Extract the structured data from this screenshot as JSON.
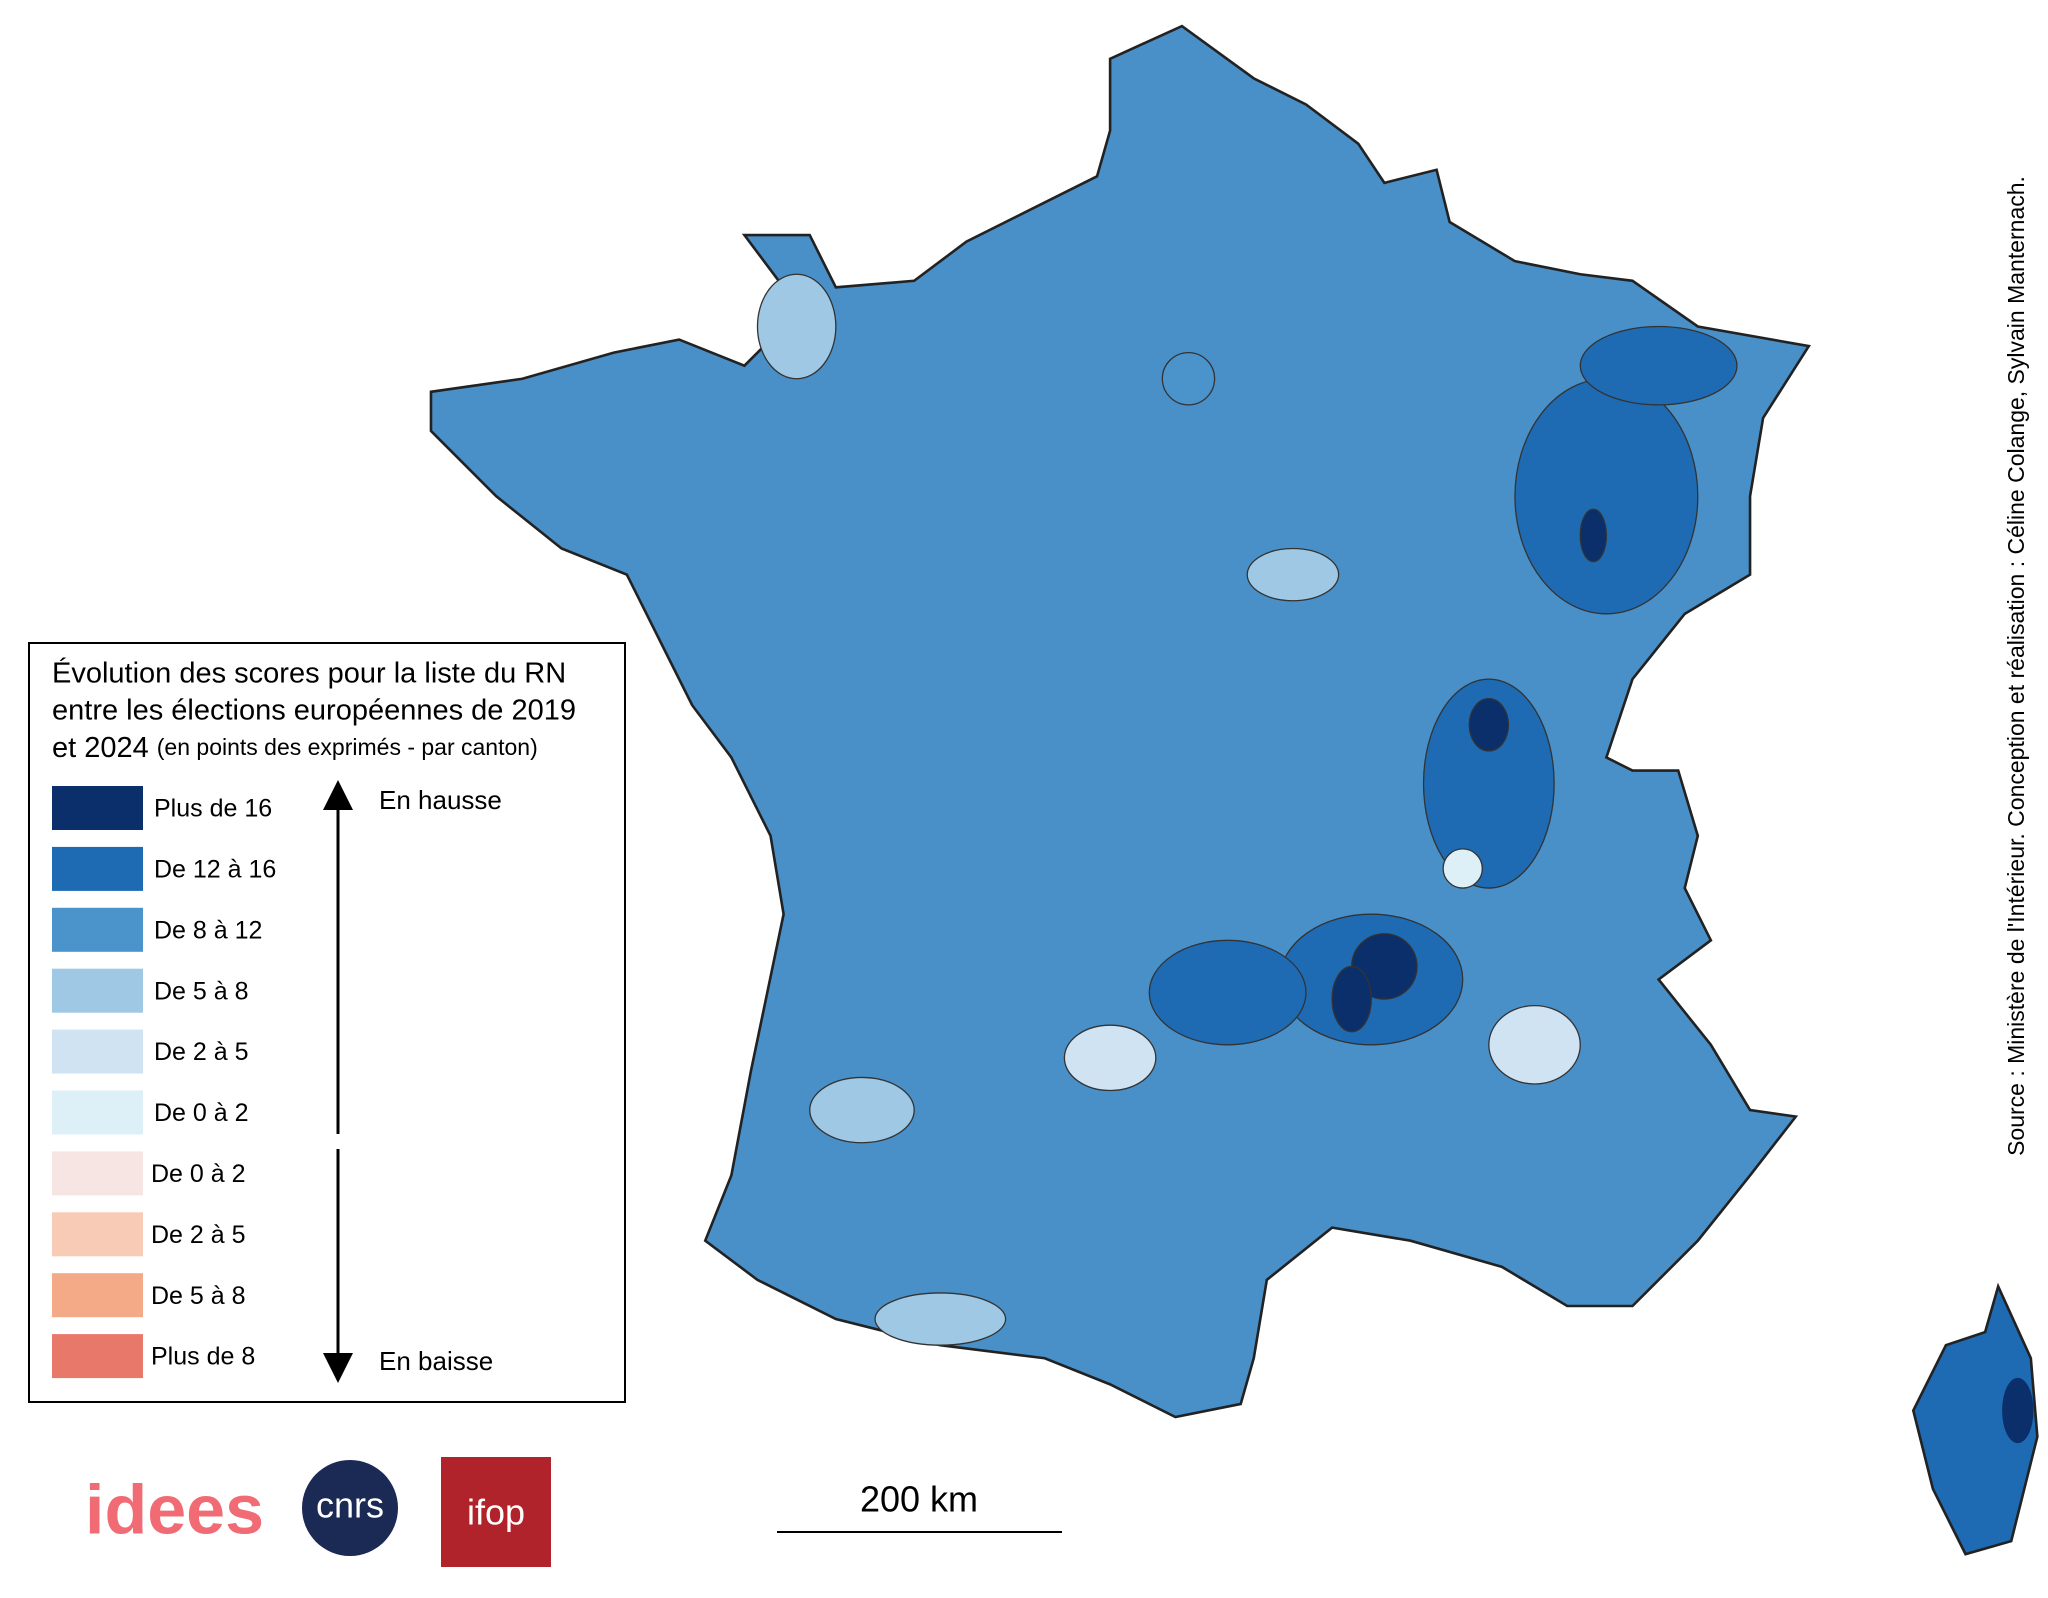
{
  "legend": {
    "title_lines": [
      "Évolution des scores pour la liste du RN",
      "entre les élections européennes de 2019"
    ],
    "title_last": "et 2024",
    "subtitle": "(en points des exprimés - par canton)",
    "items": [
      {
        "label": "Plus de 16",
        "color": "#0b2f6b"
      },
      {
        "label": "De 12 à 16",
        "color": "#1e6bb3"
      },
      {
        "label": "De 8 à 12",
        "color": "#4a93cb"
      },
      {
        "label": "De 5 à 8",
        "color": "#9ec8e3"
      },
      {
        "label": "De 2 à 5",
        "color": "#d0e3f3"
      },
      {
        "label": "De 0 à 2",
        "color": "#ddeff7"
      },
      {
        "label": "De 0 à 2",
        "color": "#f6e5e2"
      },
      {
        "label": "De 2 à 5",
        "color": "#f7cbb6"
      },
      {
        "label": "De 5 à 8",
        "color": "#f4a987"
      },
      {
        "label": "Plus de 8",
        "color": "#e8786a"
      }
    ],
    "up_label": "En hausse",
    "down_label": "En baisse"
  },
  "scale_bar": "200 km",
  "source": "Source : Ministère de l'Intérieur. Conception et réalisation : Céline Colange, Sylvain Manternach.",
  "logos": [
    "idees",
    "cnrs",
    "ifop"
  ]
}
